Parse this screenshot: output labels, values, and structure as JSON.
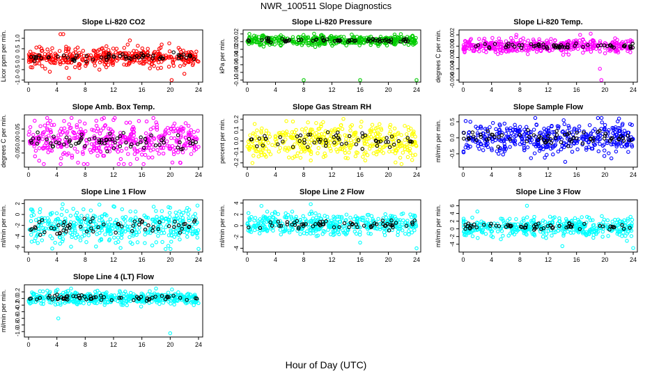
{
  "figure": {
    "title": "NWR_100511  Slope Diagnostics",
    "xlabel": "Hour of Day (UTC)",
    "colors": {
      "overlay": "#000000",
      "axis": "#000000"
    }
  },
  "chart_data": [
    {
      "type": "scatter",
      "title": "Slope Li-820 CO2",
      "ylabel": "Licor ppm per min.",
      "xlim": [
        0,
        24
      ],
      "xticks": [
        0,
        4,
        8,
        12,
        16,
        20,
        24
      ],
      "ylim": [
        -1.0,
        1.3
      ],
      "yticks": [
        -1.0,
        -0.5,
        0.0,
        0.5,
        1.0
      ],
      "yticklabels": [
        "-1.0",
        "-0.5",
        "0.0",
        "0.5",
        "1.0"
      ],
      "color": "#ff0000",
      "n_points": 420,
      "center": 0.1,
      "spread": 0.22,
      "n_overlay": 60,
      "outliers": [
        [
          4.5,
          1.2
        ],
        [
          4.9,
          1.2
        ],
        [
          5.7,
          -0.9
        ],
        [
          14,
          0.7
        ],
        [
          14.3,
          0.9
        ],
        [
          18.8,
          0.7
        ],
        [
          20.2,
          -1.0
        ],
        [
          22,
          -0.7
        ],
        [
          10,
          -0.5
        ],
        [
          3,
          -0.6
        ]
      ]
    },
    {
      "type": "scatter",
      "title": "Slope Li-820 Pressure",
      "ylabel": "kPa per min.",
      "xlim": [
        0,
        24
      ],
      "xticks": [
        0,
        4,
        8,
        12,
        16,
        20,
        24
      ],
      "ylim": [
        -0.1,
        0.025
      ],
      "yticks": [
        -0.1,
        -0.08,
        -0.06,
        -0.04,
        -0.02,
        0.0,
        0.02
      ],
      "yticklabels": [
        "-0.10",
        "-0.08",
        "-0.06",
        "-0.04",
        "-0.02",
        "0.00",
        "0.02"
      ],
      "color": "#00cc00",
      "n_points": 420,
      "center": 0.003,
      "spread": 0.006,
      "n_overlay": 60,
      "outliers": [
        [
          8,
          -0.1
        ],
        [
          16,
          -0.1
        ],
        [
          24,
          -0.1
        ],
        [
          0.3,
          0.02
        ]
      ]
    },
    {
      "type": "scatter",
      "title": "Slope Li-820 Temp.",
      "ylabel": "degrees C per min.",
      "xlim": [
        0,
        24
      ],
      "xticks": [
        0,
        4,
        8,
        12,
        16,
        20,
        24
      ],
      "ylim": [
        -0.006,
        0.0025
      ],
      "yticks": [
        -0.006,
        -0.004,
        -0.002,
        0.0,
        0.002
      ],
      "yticklabels": [
        "-0.006",
        "-0.004",
        "-0.002",
        "0.000",
        "0.002"
      ],
      "color": "#ff00ff",
      "n_points": 420,
      "center": 0.0,
      "spread": 0.0006,
      "n_overlay": 60,
      "outliers": [
        [
          19.5,
          -0.006
        ],
        [
          18,
          0.0022
        ],
        [
          19.3,
          -0.004
        ],
        [
          16.5,
          0.002
        ],
        [
          7.5,
          0.002
        ]
      ]
    },
    {
      "type": "scatter",
      "title": "Slope Amb. Box Temp.",
      "ylabel": "degrees C per min.",
      "xlim": [
        0,
        24
      ],
      "xticks": [
        0,
        4,
        8,
        12,
        16,
        20,
        24
      ],
      "ylim": [
        -0.1,
        0.1
      ],
      "yticks": [
        -0.05,
        0.0,
        0.05
      ],
      "yticklabels": [
        "-0.05",
        "0.00",
        "0.05"
      ],
      "color": "#ff00ff",
      "n_points": 420,
      "center": 0.0,
      "spread": 0.04,
      "n_overlay": 70,
      "outliers": []
    },
    {
      "type": "scatter",
      "title": "Slope Gas Stream RH",
      "ylabel": "percent per min.",
      "xlim": [
        0,
        24
      ],
      "xticks": [
        0,
        4,
        8,
        12,
        16,
        20,
        24
      ],
      "ylim": [
        -0.22,
        0.22
      ],
      "yticks": [
        -0.2,
        -0.1,
        0.0,
        0.1,
        0.2
      ],
      "yticklabels": [
        "-0.2",
        "-0.1",
        "0.0",
        "0.1",
        "0.2"
      ],
      "color": "#ffff00",
      "n_points": 420,
      "center": 0.0,
      "spread": 0.08,
      "n_overlay": 60,
      "outliers": []
    },
    {
      "type": "scatter",
      "title": "Slope Sample Flow",
      "ylabel": "ml/min per min.",
      "xlim": [
        0,
        24
      ],
      "xticks": [
        0,
        4,
        8,
        12,
        16,
        20,
        24
      ],
      "ylim": [
        -0.85,
        0.65
      ],
      "yticks": [
        -0.5,
        0.0,
        0.5
      ],
      "yticklabels": [
        "-0.5",
        "0.0",
        "0.5"
      ],
      "color": "#0000ff",
      "n_points": 420,
      "center": 0.0,
      "spread": 0.25,
      "n_overlay": 70,
      "outliers": [
        [
          14.4,
          -0.75
        ],
        [
          1,
          0.5
        ],
        [
          5,
          -0.5
        ],
        [
          22,
          0.6
        ]
      ]
    },
    {
      "type": "scatter",
      "title": "Slope Line 1 Flow",
      "ylabel": "ml/min per min.",
      "xlim": [
        0,
        24
      ],
      "xticks": [
        0,
        4,
        8,
        12,
        16,
        20,
        24
      ],
      "ylim": [
        -6.5,
        2.3
      ],
      "yticks": [
        -6,
        -4,
        -2,
        0,
        2
      ],
      "yticklabels": [
        "-6",
        "-4",
        "-2",
        "0",
        "2"
      ],
      "color": "#00ffff",
      "n_points": 420,
      "center": -2.2,
      "spread": 1.6,
      "n_overlay": 60,
      "outliers": [
        [
          24,
          -6.3
        ],
        [
          10,
          1.8
        ],
        [
          12,
          1.5
        ]
      ]
    },
    {
      "type": "scatter",
      "title": "Slope Line 2 Flow",
      "ylabel": "ml/min per min.",
      "xlim": [
        0,
        24
      ],
      "xticks": [
        0,
        4,
        8,
        12,
        16,
        20,
        24
      ],
      "ylim": [
        -4.3,
        4.2
      ],
      "yticks": [
        -4,
        -2,
        0,
        2,
        4
      ],
      "yticklabels": [
        "-4",
        "-2",
        "0",
        "2",
        "4"
      ],
      "color": "#00ffff",
      "n_points": 420,
      "center": 0.2,
      "spread": 0.9,
      "n_overlay": 60,
      "outliers": [
        [
          24,
          -4.0
        ],
        [
          16,
          -3.0
        ],
        [
          2,
          3.5
        ],
        [
          9,
          3.8
        ]
      ]
    },
    {
      "type": "scatter",
      "title": "Slope Line 3 Flow",
      "ylabel": "ml/min per min.",
      "xlim": [
        0,
        24
      ],
      "xticks": [
        0,
        4,
        8,
        12,
        16,
        20,
        24
      ],
      "ylim": [
        -5.5,
        7.0
      ],
      "yticks": [
        -4,
        -2,
        0,
        2,
        4,
        6
      ],
      "yticklabels": [
        "-4",
        "-2",
        "0",
        "2",
        "4",
        "6"
      ],
      "color": "#00ffff",
      "n_points": 420,
      "center": 0.5,
      "spread": 1.2,
      "n_overlay": 60,
      "outliers": [
        [
          24,
          -5.0
        ],
        [
          14,
          -4.5
        ],
        [
          9,
          6.0
        ],
        [
          2,
          4.5
        ]
      ]
    },
    {
      "type": "scatter",
      "title": "Slope Line 4 (LT) Flow",
      "ylabel": "ml/min per min.",
      "xlim": [
        0,
        24
      ],
      "xticks": [
        0,
        4,
        8,
        12,
        16,
        20,
        24
      ],
      "ylim": [
        -1.1,
        0.35
      ],
      "yticks": [
        -1.0,
        -0.8,
        -0.6,
        -0.4,
        -0.2,
        0.0,
        0.2
      ],
      "yticklabels": [
        "-1.0",
        "-0.8",
        "-0.6",
        "-0.4",
        "-0.2",
        "0.0",
        "0.2"
      ],
      "color": "#00ffff",
      "n_points": 420,
      "center": 0.02,
      "spread": 0.1,
      "n_overlay": 60,
      "outliers": [
        [
          4.2,
          -0.6
        ],
        [
          20,
          -1.05
        ],
        [
          18,
          0.3
        ],
        [
          6,
          0.3
        ]
      ]
    }
  ]
}
